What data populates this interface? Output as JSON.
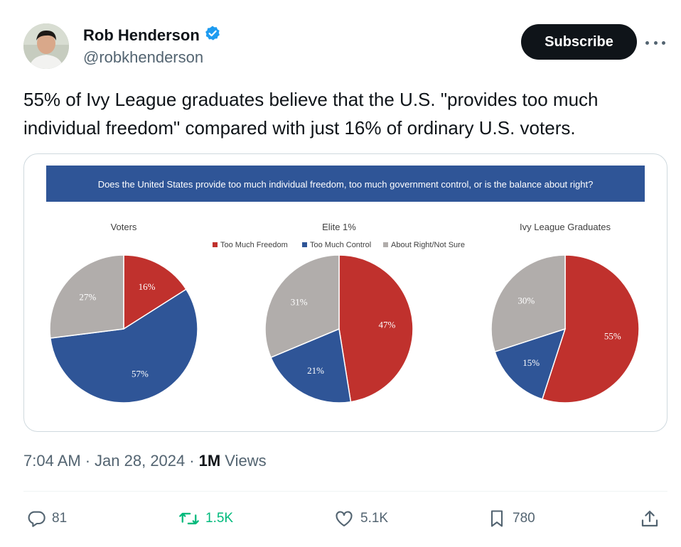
{
  "author": {
    "display_name": "Rob Henderson",
    "handle": "@robkhenderson",
    "verified": true
  },
  "subscribe_label": "Subscribe",
  "tweet_text": "55% of Ivy League graduates believe that the U.S. \"provides too much individual freedom\" compared with just 16% of ordinary U.S. voters.",
  "meta": {
    "time": "7:04 AM",
    "separator": "·",
    "date": "Jan 28, 2024",
    "views_count": "1M",
    "views_label": "Views"
  },
  "actions": {
    "reply_count": "81",
    "retweet_count": "1.5K",
    "like_count": "5.1K",
    "bookmark_count": "780"
  },
  "colors": {
    "freedom": "#c0312d",
    "control": "#2f5597",
    "right": "#b1adab",
    "header_band": "#2f5597",
    "verified": "#1d9bf0"
  },
  "chart_data": {
    "type": "pie",
    "title": "Does the United States provide too much individual freedom, too much government control, or is the balance about right?",
    "legend": [
      "Too Much Freedom",
      "Too Much Control",
      "About Right/Not Sure"
    ],
    "legend_placement": "top-center",
    "charts": [
      {
        "name": "Voters",
        "values": [
          16,
          57,
          27
        ],
        "labels": [
          "16%",
          "57%",
          "27%"
        ]
      },
      {
        "name": "Elite 1%",
        "values": [
          47,
          21,
          31
        ],
        "labels": [
          "47%",
          "21%",
          "31%"
        ]
      },
      {
        "name": "Ivy League Graduates",
        "values": [
          55,
          15,
          30
        ],
        "labels": [
          "55%",
          "15%",
          "30%"
        ]
      }
    ]
  }
}
